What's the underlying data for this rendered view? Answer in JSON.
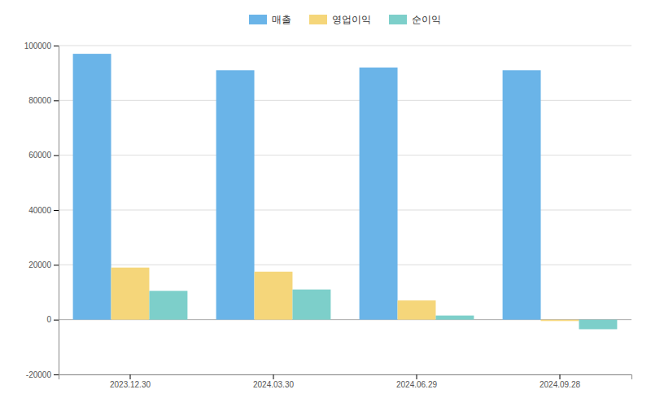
{
  "chart_data": {
    "type": "bar",
    "categories": [
      "2023.12.30",
      "2024.03.30",
      "2024.06.29",
      "2024.09.28"
    ],
    "series": [
      {
        "name": "매출",
        "color": "#6ab4e8",
        "values": [
          97000,
          91000,
          92000,
          91000
        ]
      },
      {
        "name": "영업이익",
        "color": "#f5d67a",
        "values": [
          19000,
          17500,
          7000,
          -500
        ]
      },
      {
        "name": "순이익",
        "color": "#7dcfca",
        "values": [
          10500,
          11000,
          1500,
          -3500
        ]
      }
    ],
    "ylim": [
      -20000,
      100000
    ],
    "yticks": [
      -20000,
      0,
      20000,
      40000,
      60000,
      80000,
      100000
    ],
    "grid": true,
    "legend": "top"
  }
}
